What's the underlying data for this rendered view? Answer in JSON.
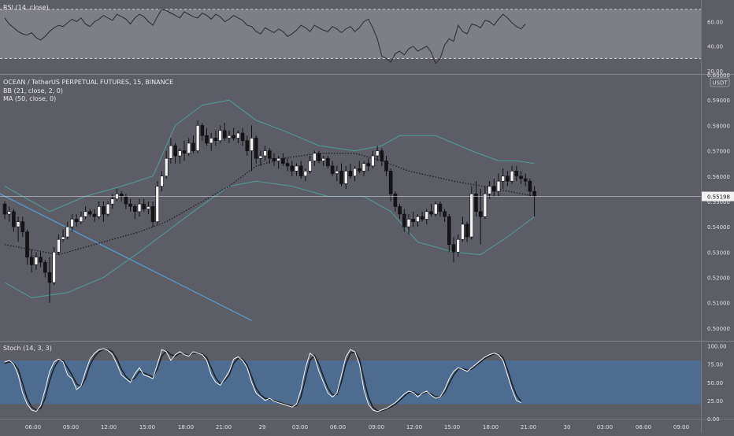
{
  "chart_data": {
    "type": "candlestick",
    "symbol_title": "OCEAN / TetherUS PERPETUAL FUTURES, 15, BINANCE",
    "indicator_labels": [
      "BB (21, close, 2, 0)",
      "MA (50, close, 0)"
    ],
    "currency_badge": "USDT",
    "last_price": "0.55198",
    "price_axis": {
      "min": 0.495,
      "max": 0.6,
      "ticks": [
        "0.59000",
        "0.58000",
        "0.57000",
        "0.56000",
        "0.55000",
        "0.54000",
        "0.53000",
        "0.52000",
        "0.51000",
        "0.50000"
      ],
      "top_cut_label": "0.60000"
    },
    "time_axis": {
      "labels": [
        "06:00",
        "09:00",
        "12:00",
        "15:00",
        "18:00",
        "21:00",
        "29",
        "03:00",
        "06:00",
        "09:00",
        "12:00",
        "15:00",
        "18:00",
        "21:00",
        "30",
        "03:00",
        "06:00",
        "09:00"
      ]
    },
    "candles": [
      [
        0.549,
        0.55,
        0.543,
        0.545
      ],
      [
        0.545,
        0.548,
        0.542,
        0.546
      ],
      [
        0.546,
        0.547,
        0.538,
        0.54
      ],
      [
        0.54,
        0.544,
        0.534,
        0.542
      ],
      [
        0.542,
        0.544,
        0.536,
        0.538
      ],
      [
        0.538,
        0.539,
        0.525,
        0.528
      ],
      [
        0.528,
        0.531,
        0.522,
        0.525
      ],
      [
        0.525,
        0.53,
        0.523,
        0.528
      ],
      [
        0.528,
        0.53,
        0.524,
        0.526
      ],
      [
        0.526,
        0.527,
        0.52,
        0.522
      ],
      [
        0.522,
        0.528,
        0.51,
        0.518
      ],
      [
        0.518,
        0.532,
        0.517,
        0.53
      ],
      [
        0.53,
        0.537,
        0.529,
        0.535
      ],
      [
        0.535,
        0.539,
        0.534,
        0.536
      ],
      [
        0.536,
        0.542,
        0.535,
        0.54
      ],
      [
        0.54,
        0.545,
        0.538,
        0.543
      ],
      [
        0.543,
        0.545,
        0.54,
        0.542
      ],
      [
        0.542,
        0.546,
        0.541,
        0.544
      ],
      [
        0.544,
        0.548,
        0.543,
        0.546
      ],
      [
        0.546,
        0.547,
        0.544,
        0.545
      ],
      [
        0.545,
        0.547,
        0.542,
        0.544
      ],
      [
        0.544,
        0.55,
        0.543,
        0.548
      ],
      [
        0.548,
        0.55,
        0.542,
        0.545
      ],
      [
        0.545,
        0.55,
        0.544,
        0.549
      ],
      [
        0.549,
        0.553,
        0.547,
        0.551
      ],
      [
        0.551,
        0.555,
        0.55,
        0.553
      ],
      [
        0.553,
        0.554,
        0.55,
        0.552
      ],
      [
        0.552,
        0.553,
        0.547,
        0.549
      ],
      [
        0.549,
        0.551,
        0.546,
        0.548
      ],
      [
        0.548,
        0.549,
        0.543,
        0.546
      ],
      [
        0.546,
        0.551,
        0.544,
        0.549
      ],
      [
        0.549,
        0.551,
        0.546,
        0.547
      ],
      [
        0.547,
        0.55,
        0.545,
        0.548
      ],
      [
        0.548,
        0.55,
        0.54,
        0.542
      ],
      [
        0.542,
        0.558,
        0.541,
        0.556
      ],
      [
        0.556,
        0.562,
        0.554,
        0.56
      ],
      [
        0.56,
        0.57,
        0.559,
        0.567
      ],
      [
        0.567,
        0.575,
        0.565,
        0.572
      ],
      [
        0.572,
        0.573,
        0.565,
        0.568
      ],
      [
        0.568,
        0.571,
        0.565,
        0.57
      ],
      [
        0.57,
        0.574,
        0.566,
        0.569
      ],
      [
        0.569,
        0.575,
        0.568,
        0.573
      ],
      [
        0.573,
        0.576,
        0.569,
        0.57
      ],
      [
        0.57,
        0.582,
        0.569,
        0.58
      ],
      [
        0.58,
        0.581,
        0.574,
        0.576
      ],
      [
        0.576,
        0.579,
        0.572,
        0.573
      ],
      [
        0.573,
        0.577,
        0.57,
        0.575
      ],
      [
        0.575,
        0.578,
        0.572,
        0.574
      ],
      [
        0.574,
        0.58,
        0.573,
        0.578
      ],
      [
        0.578,
        0.581,
        0.574,
        0.575
      ],
      [
        0.575,
        0.578,
        0.573,
        0.576
      ],
      [
        0.576,
        0.579,
        0.574,
        0.575
      ],
      [
        0.575,
        0.578,
        0.573,
        0.577
      ],
      [
        0.577,
        0.579,
        0.572,
        0.574
      ],
      [
        0.574,
        0.576,
        0.568,
        0.57
      ],
      [
        0.57,
        0.58,
        0.562,
        0.575
      ],
      [
        0.575,
        0.576,
        0.565,
        0.567
      ],
      [
        0.567,
        0.57,
        0.564,
        0.568
      ],
      [
        0.568,
        0.572,
        0.566,
        0.57
      ],
      [
        0.57,
        0.571,
        0.565,
        0.567
      ],
      [
        0.567,
        0.569,
        0.564,
        0.566
      ],
      [
        0.566,
        0.568,
        0.563,
        0.567
      ],
      [
        0.567,
        0.569,
        0.564,
        0.565
      ],
      [
        0.565,
        0.567,
        0.562,
        0.564
      ],
      [
        0.564,
        0.566,
        0.56,
        0.562
      ],
      [
        0.562,
        0.565,
        0.56,
        0.564
      ],
      [
        0.564,
        0.566,
        0.559,
        0.56
      ],
      [
        0.56,
        0.563,
        0.558,
        0.562
      ],
      [
        0.562,
        0.568,
        0.561,
        0.566
      ],
      [
        0.566,
        0.57,
        0.564,
        0.569
      ],
      [
        0.569,
        0.57,
        0.565,
        0.566
      ],
      [
        0.566,
        0.568,
        0.564,
        0.567
      ],
      [
        0.567,
        0.568,
        0.563,
        0.564
      ],
      [
        0.564,
        0.566,
        0.56,
        0.561
      ],
      [
        0.561,
        0.564,
        0.558,
        0.562
      ],
      [
        0.562,
        0.565,
        0.556,
        0.557
      ],
      [
        0.557,
        0.564,
        0.555,
        0.562
      ],
      [
        0.562,
        0.565,
        0.559,
        0.56
      ],
      [
        0.56,
        0.564,
        0.558,
        0.563
      ],
      [
        0.563,
        0.566,
        0.561,
        0.562
      ],
      [
        0.562,
        0.566,
        0.56,
        0.565
      ],
      [
        0.565,
        0.567,
        0.562,
        0.564
      ],
      [
        0.564,
        0.57,
        0.563,
        0.568
      ],
      [
        0.568,
        0.572,
        0.566,
        0.57
      ],
      [
        0.57,
        0.571,
        0.564,
        0.566
      ],
      [
        0.566,
        0.568,
        0.56,
        0.562
      ],
      [
        0.562,
        0.563,
        0.55,
        0.553
      ],
      [
        0.553,
        0.554,
        0.546,
        0.548
      ],
      [
        0.548,
        0.549,
        0.543,
        0.545
      ],
      [
        0.545,
        0.547,
        0.538,
        0.54
      ],
      [
        0.54,
        0.545,
        0.537,
        0.543
      ],
      [
        0.543,
        0.546,
        0.54,
        0.542
      ],
      [
        0.542,
        0.545,
        0.54,
        0.544
      ],
      [
        0.544,
        0.546,
        0.542,
        0.543
      ],
      [
        0.543,
        0.547,
        0.541,
        0.546
      ],
      [
        0.546,
        0.549,
        0.544,
        0.545
      ],
      [
        0.545,
        0.55,
        0.544,
        0.549
      ],
      [
        0.549,
        0.55,
        0.544,
        0.546
      ],
      [
        0.546,
        0.547,
        0.542,
        0.544
      ],
      [
        0.544,
        0.545,
        0.53,
        0.533
      ],
      [
        0.533,
        0.536,
        0.526,
        0.53
      ],
      [
        0.53,
        0.537,
        0.528,
        0.535
      ],
      [
        0.535,
        0.544,
        0.534,
        0.541
      ],
      [
        0.541,
        0.542,
        0.534,
        0.536
      ],
      [
        0.536,
        0.556,
        0.535,
        0.553
      ],
      [
        0.553,
        0.558,
        0.544,
        0.546
      ],
      [
        0.546,
        0.555,
        0.533,
        0.544
      ],
      [
        0.544,
        0.556,
        0.543,
        0.553
      ],
      [
        0.553,
        0.558,
        0.551,
        0.556
      ],
      [
        0.556,
        0.559,
        0.552,
        0.554
      ],
      [
        0.554,
        0.561,
        0.552,
        0.558
      ],
      [
        0.558,
        0.563,
        0.555,
        0.56
      ],
      [
        0.56,
        0.562,
        0.556,
        0.558
      ],
      [
        0.558,
        0.564,
        0.557,
        0.562
      ],
      [
        0.562,
        0.564,
        0.558,
        0.56
      ],
      [
        0.56,
        0.562,
        0.557,
        0.559
      ],
      [
        0.559,
        0.561,
        0.556,
        0.558
      ],
      [
        0.558,
        0.559,
        0.552,
        0.554
      ],
      [
        0.554,
        0.556,
        0.544,
        0.552
      ]
    ],
    "bb": {
      "upper": [
        [
          0,
          0.556
        ],
        [
          10,
          0.546
        ],
        [
          18,
          0.552
        ],
        [
          26,
          0.556
        ],
        [
          33,
          0.56
        ],
        [
          38,
          0.58
        ],
        [
          44,
          0.588
        ],
        [
          50,
          0.59
        ],
        [
          56,
          0.582
        ],
        [
          62,
          0.578
        ],
        [
          70,
          0.572
        ],
        [
          78,
          0.57
        ],
        [
          84,
          0.572
        ],
        [
          88,
          0.576
        ],
        [
          96,
          0.576
        ],
        [
          104,
          0.57
        ],
        [
          110,
          0.566
        ],
        [
          114,
          0.566
        ],
        [
          118,
          0.565
        ]
      ],
      "lower": [
        [
          0,
          0.518
        ],
        [
          6,
          0.512
        ],
        [
          14,
          0.514
        ],
        [
          22,
          0.52
        ],
        [
          30,
          0.53
        ],
        [
          36,
          0.538
        ],
        [
          42,
          0.546
        ],
        [
          50,
          0.556
        ],
        [
          56,
          0.558
        ],
        [
          64,
          0.556
        ],
        [
          72,
          0.552
        ],
        [
          80,
          0.552
        ],
        [
          86,
          0.546
        ],
        [
          92,
          0.534
        ],
        [
          100,
          0.53
        ],
        [
          106,
          0.529
        ],
        [
          112,
          0.536
        ],
        [
          118,
          0.544
        ]
      ]
    },
    "ma50": [
      [
        0,
        0.533
      ],
      [
        12,
        0.529
      ],
      [
        20,
        0.533
      ],
      [
        30,
        0.538
      ],
      [
        36,
        0.542
      ],
      [
        42,
        0.548
      ],
      [
        50,
        0.556
      ],
      [
        56,
        0.564
      ],
      [
        62,
        0.567
      ],
      [
        70,
        0.569
      ],
      [
        78,
        0.569
      ],
      [
        84,
        0.566
      ],
      [
        90,
        0.562
      ],
      [
        100,
        0.558
      ],
      [
        108,
        0.5555
      ],
      [
        118,
        0.552
      ]
    ],
    "trendline": [
      [
        0,
        0.553
      ],
      [
        55,
        0.503
      ]
    ],
    "rsi": {
      "label": "RSI (14, close)",
      "ticks": [
        "60.00",
        "40.00",
        "20.00"
      ],
      "band": [
        70,
        30
      ],
      "range": [
        20,
        75
      ],
      "values": [
        63,
        58,
        55,
        52,
        50,
        49,
        51,
        47,
        45,
        48,
        52,
        55,
        57,
        56,
        59,
        62,
        60,
        63,
        58,
        56,
        60,
        62,
        65,
        63,
        61,
        66,
        64,
        62,
        58,
        63,
        66,
        64,
        60,
        57,
        64,
        70,
        69,
        67,
        65,
        63,
        68,
        66,
        64,
        63,
        67,
        65,
        62,
        66,
        64,
        60,
        62,
        65,
        63,
        61,
        57,
        56,
        52,
        50,
        55,
        53,
        51,
        54,
        52,
        48,
        50,
        53,
        57,
        55,
        52,
        57,
        55,
        53,
        52,
        56,
        54,
        51,
        54,
        56,
        52,
        55,
        60,
        62,
        55,
        46,
        32,
        30,
        27,
        34,
        36,
        33,
        38,
        40,
        36,
        38,
        40,
        35,
        26,
        30,
        41,
        46,
        44,
        57,
        52,
        50,
        58,
        57,
        55,
        61,
        60,
        57,
        62,
        66,
        63,
        59,
        56,
        54,
        58
      ]
    },
    "stoch": {
      "label": "Stoch (14, 3, 3)",
      "ticks": [
        "100.00",
        "75.00",
        "50.00",
        "25.00",
        "0.00"
      ],
      "band": [
        80,
        20
      ],
      "range": [
        0,
        106
      ],
      "k": [
        78,
        80,
        75,
        60,
        35,
        20,
        12,
        10,
        18,
        40,
        65,
        78,
        82,
        78,
        60,
        55,
        40,
        45,
        65,
        82,
        90,
        95,
        96,
        94,
        88,
        75,
        60,
        55,
        50,
        62,
        70,
        60,
        58,
        55,
        75,
        95,
        92,
        80,
        88,
        92,
        88,
        86,
        92,
        90,
        88,
        80,
        60,
        50,
        46,
        55,
        65,
        82,
        85,
        80,
        70,
        50,
        35,
        30,
        25,
        28,
        24,
        22,
        20,
        18,
        16,
        20,
        40,
        70,
        90,
        85,
        65,
        50,
        35,
        30,
        35,
        60,
        85,
        95,
        92,
        75,
        40,
        20,
        12,
        10,
        12,
        14,
        18,
        22,
        28,
        34,
        38,
        36,
        30,
        35,
        38,
        32,
        28,
        30,
        40,
        55,
        65,
        70,
        68,
        65,
        70,
        75,
        80,
        85,
        88,
        90,
        88,
        80,
        60,
        40,
        25,
        22
      ],
      "d": [
        76,
        78,
        76,
        68,
        48,
        28,
        16,
        12,
        14,
        28,
        52,
        70,
        80,
        80,
        70,
        60,
        48,
        44,
        55,
        74,
        85,
        92,
        95,
        95,
        92,
        82,
        68,
        58,
        52,
        56,
        65,
        63,
        60,
        57,
        68,
        86,
        93,
        88,
        86,
        90,
        89,
        87,
        90,
        90,
        89,
        84,
        70,
        56,
        48,
        52,
        60,
        76,
        83,
        82,
        74,
        58,
        42,
        33,
        28,
        27,
        25,
        23,
        21,
        19,
        17,
        18,
        30,
        55,
        80,
        87,
        75,
        58,
        42,
        33,
        33,
        50,
        75,
        90,
        92,
        82,
        55,
        30,
        16,
        11,
        11,
        13,
        16,
        20,
        25,
        31,
        36,
        37,
        33,
        34,
        37,
        34,
        30,
        30,
        36,
        48,
        60,
        68,
        69,
        67,
        68,
        73,
        78,
        83,
        86,
        89,
        89,
        84,
        68,
        48,
        32,
        24
      ]
    }
  }
}
